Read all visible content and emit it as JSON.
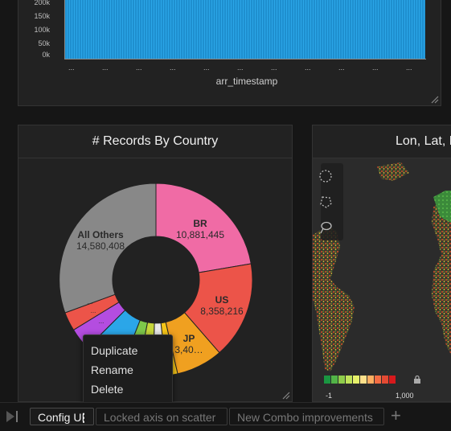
{
  "top_chart": {
    "y_ticks": [
      "200k",
      "150k",
      "100k",
      "50k",
      "0k"
    ],
    "x_tick": "...",
    "x_label": "arr_timestamp"
  },
  "donut_panel": {
    "title": "# Records By Country",
    "slices": [
      {
        "label": "BR",
        "value": "10,881,445",
        "color": "#f06ba5"
      },
      {
        "label": "US",
        "value": "8,358,216",
        "color": "#ec5449"
      },
      {
        "label": "JP",
        "value": "3,40…",
        "color": "#f0a020"
      },
      {
        "label": "",
        "value": "",
        "color": "#f5c518"
      },
      {
        "label": "",
        "value": "",
        "color": "#e8e8e8"
      },
      {
        "label": "",
        "value": "",
        "color": "#c6d63a"
      },
      {
        "label": "",
        "value": "",
        "color": "#7ec84a"
      },
      {
        "label": "...",
        "value": "",
        "color": "#2ba6e8"
      },
      {
        "label": "...",
        "value": "",
        "color": "#b44de0"
      },
      {
        "label": "...",
        "value": "",
        "color": "#ec5449"
      },
      {
        "label": "All Others",
        "value": "14,580,408",
        "color": "#888888"
      }
    ]
  },
  "map_panel": {
    "title": "Lon, Lat, F",
    "legend_min": "-1",
    "legend_max": "1,000",
    "legend_colors": [
      "#1a9641",
      "#52b447",
      "#8fcd4b",
      "#c0e35a",
      "#e6f06a",
      "#fee08b",
      "#fdae61",
      "#f46d43",
      "#e34a33",
      "#d7191c"
    ],
    "tools": [
      "circle-select-icon",
      "polygon-select-icon",
      "lasso-select-icon"
    ]
  },
  "context_menu": {
    "items": [
      "Duplicate",
      "Rename",
      "Delete"
    ]
  },
  "tabs": {
    "active": "Config UI",
    "others": [
      "Locked axis on scatter",
      "New Combo improvements"
    ]
  }
}
